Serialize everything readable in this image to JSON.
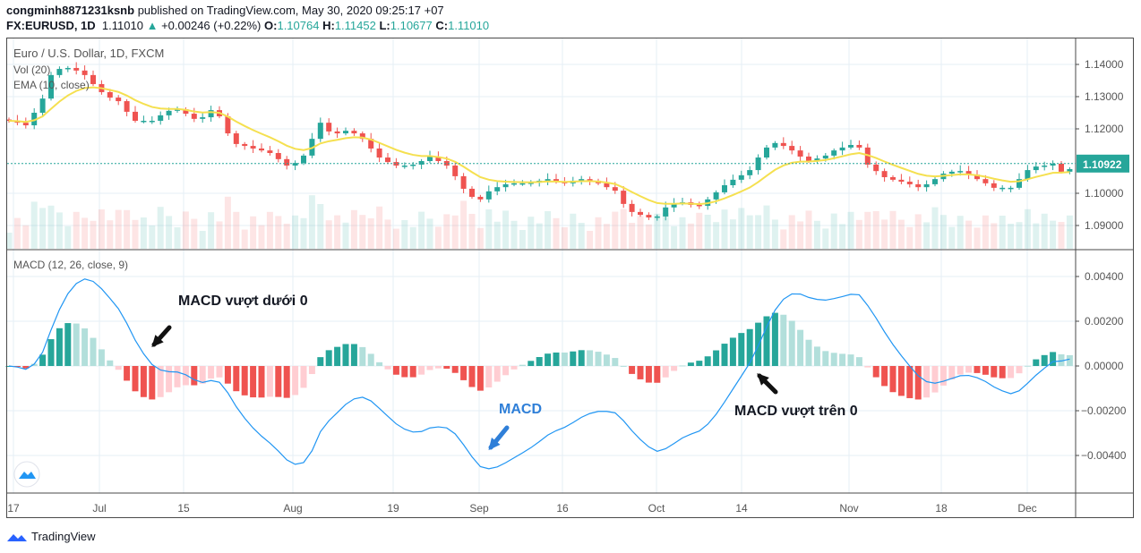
{
  "header": {
    "author": "congminh8871231ksnb",
    "published": "published on TradingView.com, May 30, 2020 09:25:17 +07",
    "symbol": "FX:EURUSD, 1D",
    "last": "1.11010",
    "change": "+0.00246 (+0.22%)",
    "o_label": "O:",
    "o": "1.10764",
    "h_label": "H:",
    "h": "1.11452",
    "l_label": "L:",
    "l": "1.10677",
    "c_label": "C:",
    "c": "1.11010"
  },
  "legend": {
    "title": "Euro / U.S. Dollar, 1D, FXCM",
    "vol": "Vol (20)",
    "ema": "EMA (10, close)",
    "macd": "MACD (12, 26, close, 9)"
  },
  "annotations": {
    "cross_below": "MACD vượt dưới 0",
    "cross_above": "MACD vượt trên 0",
    "macd": "MACD"
  },
  "footer": {
    "brand": "TradingView"
  },
  "colors": {
    "up": "#26a69a",
    "down": "#ef5350",
    "ema": "#f5e050",
    "macd": "#2196f3",
    "grid": "#e6eff5",
    "annotation_blue": "#2f7fd8"
  },
  "chart_data": {
    "type": "candlestick",
    "price_axis": {
      "ticks": [
        "1.14000",
        "1.13000",
        "1.12000",
        "1.10000",
        "1.09000"
      ],
      "range": [
        1.0858,
        1.147
      ]
    },
    "current_price": "1.10922",
    "macd_axis": {
      "ticks": [
        "0.00400",
        "0.00200",
        "0.00000",
        "−0.00200",
        "−0.00400"
      ],
      "range": [
        -0.0057,
        0.0043
      ]
    },
    "time_labels": [
      "17",
      "Jul",
      "15",
      "Aug",
      "19",
      "Sep",
      "16",
      "Oct",
      "14",
      "Nov",
      "18",
      "Dec"
    ],
    "close": [
      1.1225,
      1.1219,
      1.1211,
      1.125,
      1.1294,
      1.1367,
      1.1386,
      1.1389,
      1.1381,
      1.1367,
      1.1339,
      1.1314,
      1.1297,
      1.1286,
      1.1253,
      1.1225,
      1.1225,
      1.1225,
      1.1242,
      1.1256,
      1.1261,
      1.1247,
      1.1231,
      1.1236,
      1.1258,
      1.1239,
      1.1186,
      1.1153,
      1.1147,
      1.1139,
      1.1133,
      1.1125,
      1.1106,
      1.1086,
      1.1094,
      1.1117,
      1.1169,
      1.1219,
      1.1192,
      1.1186,
      1.1194,
      1.1186,
      1.1169,
      1.1139,
      1.1111,
      1.1097,
      1.1086,
      1.1086,
      1.1089,
      1.11,
      1.1114,
      1.11,
      1.1086,
      1.1053,
      1.1014,
      1.0989,
      1.0981,
      1.1006,
      1.1019,
      1.1028,
      1.1031,
      1.1031,
      1.1033,
      1.1039,
      1.1044,
      1.1036,
      1.1031,
      1.1039,
      1.1044,
      1.1039,
      1.1031,
      1.1019,
      1.1008,
      1.0967,
      1.0942,
      1.0933,
      1.0925,
      1.0928,
      1.0956,
      1.0969,
      1.0972,
      1.0964,
      1.0961,
      1.0981,
      1.1003,
      1.1025,
      1.1042,
      1.1056,
      1.1072,
      1.1111,
      1.1142,
      1.1156,
      1.1147,
      1.1133,
      1.1114,
      1.11,
      1.1108,
      1.1117,
      1.1133,
      1.1142,
      1.115,
      1.1142,
      1.1089,
      1.1069,
      1.105,
      1.1042,
      1.1036,
      1.1028,
      1.1019,
      1.1028,
      1.1044,
      1.1061,
      1.1067,
      1.1069,
      1.1058,
      1.1044,
      1.1031,
      1.1017,
      1.1017,
      1.1017,
      1.1044,
      1.1072,
      1.1083,
      1.1086,
      1.1092,
      1.1067,
      1.1075
    ]
  }
}
